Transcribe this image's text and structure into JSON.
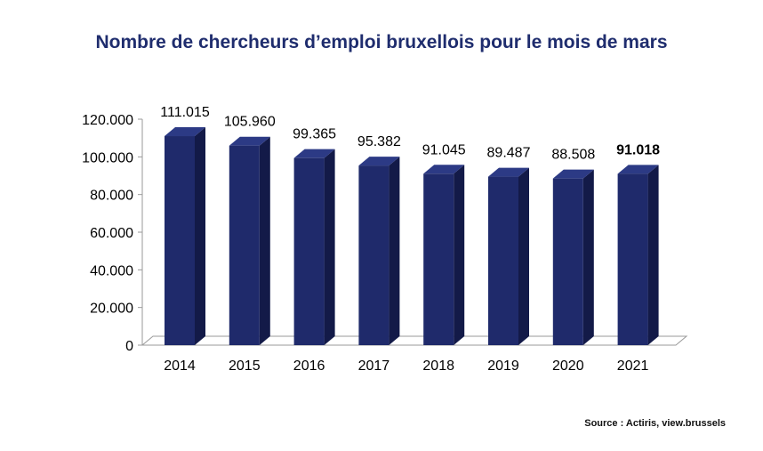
{
  "chart_data": {
    "type": "bar",
    "title": "Nombre de chercheurs d’emploi bruxellois pour le mois de mars",
    "categories": [
      "2014",
      "2015",
      "2016",
      "2017",
      "2018",
      "2019",
      "2020",
      "2021"
    ],
    "values": [
      111015,
      105960,
      99365,
      95382,
      91045,
      89487,
      88508,
      91018
    ],
    "data_labels": [
      "111.015",
      "105.960",
      "99.365",
      "95.382",
      "91.045",
      "89.487",
      "88.508",
      "91.018"
    ],
    "highlighted_label_index": 7,
    "y_ticks": [
      "0",
      "20.000",
      "40.000",
      "60.000",
      "80.000",
      "100.000",
      "120.000"
    ],
    "ylim": [
      0,
      120000
    ],
    "grid": false,
    "bar_color": "#1f2a6b",
    "bar_side_color": "#131a48",
    "bar_top_color": "#2c3a85"
  },
  "source": "Source : Actiris, view.brussels"
}
